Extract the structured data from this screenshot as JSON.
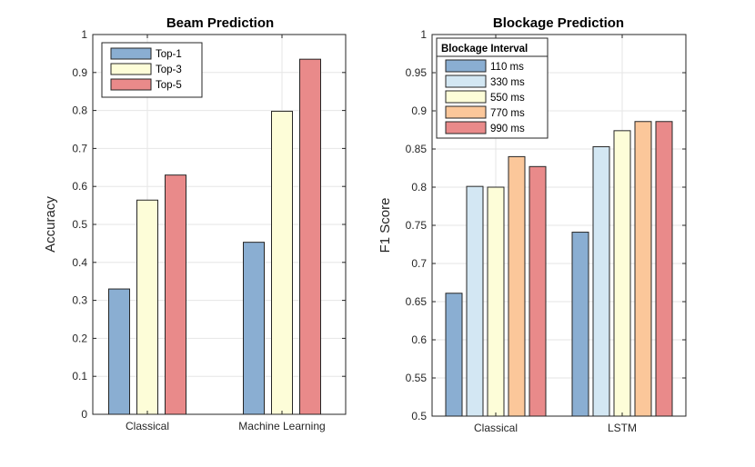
{
  "chart_data": [
    {
      "type": "bar",
      "title": "Beam Prediction",
      "xlabel": "",
      "ylabel": "Accuracy",
      "ylim": [
        0,
        1
      ],
      "yticks": [
        0,
        0.1,
        0.2,
        0.3,
        0.4,
        0.5,
        0.6,
        0.7,
        0.8,
        0.9,
        1
      ],
      "ytick_labels": [
        "0",
        "0.1",
        "0.2",
        "0.3",
        "0.4",
        "0.5",
        "0.6",
        "0.7",
        "0.8",
        "0.9",
        "1"
      ],
      "categories": [
        "Classical",
        "Machine Learning"
      ],
      "grid": true,
      "legend_title": "",
      "legend_position": "top-left",
      "series": [
        {
          "name": "Top-1",
          "color": "#8aaed2",
          "values": [
            0.33,
            0.453
          ]
        },
        {
          "name": "Top-3",
          "color": "#fdfdd8",
          "values": [
            0.564,
            0.798
          ]
        },
        {
          "name": "Top-5",
          "color": "#e98a8a",
          "values": [
            0.63,
            0.935
          ]
        }
      ]
    },
    {
      "type": "bar",
      "title": "Blockage Prediction",
      "xlabel": "",
      "ylabel": "F1 Score",
      "ylim": [
        0.5,
        1
      ],
      "yticks": [
        0.5,
        0.55,
        0.6,
        0.65,
        0.7,
        0.75,
        0.8,
        0.85,
        0.9,
        0.95,
        1
      ],
      "ytick_labels": [
        "0.5",
        "0.55",
        "0.6",
        "0.65",
        "0.7",
        "0.75",
        "0.8",
        "0.85",
        "0.9",
        "0.95",
        "1"
      ],
      "categories": [
        "Classical",
        "LSTM"
      ],
      "grid": true,
      "legend_title": "Blockage Interval",
      "legend_position": "top-left",
      "series": [
        {
          "name": "110 ms",
          "color": "#8aaed2",
          "values": [
            0.661,
            0.741
          ]
        },
        {
          "name": "330 ms",
          "color": "#d3e7f3",
          "values": [
            0.801,
            0.853
          ]
        },
        {
          "name": "550 ms",
          "color": "#fdfdd8",
          "values": [
            0.8,
            0.874
          ]
        },
        {
          "name": "770 ms",
          "color": "#fbc79a",
          "values": [
            0.84,
            0.886
          ]
        },
        {
          "name": "990 ms",
          "color": "#e98a8a",
          "values": [
            0.827,
            0.886
          ]
        }
      ]
    }
  ]
}
